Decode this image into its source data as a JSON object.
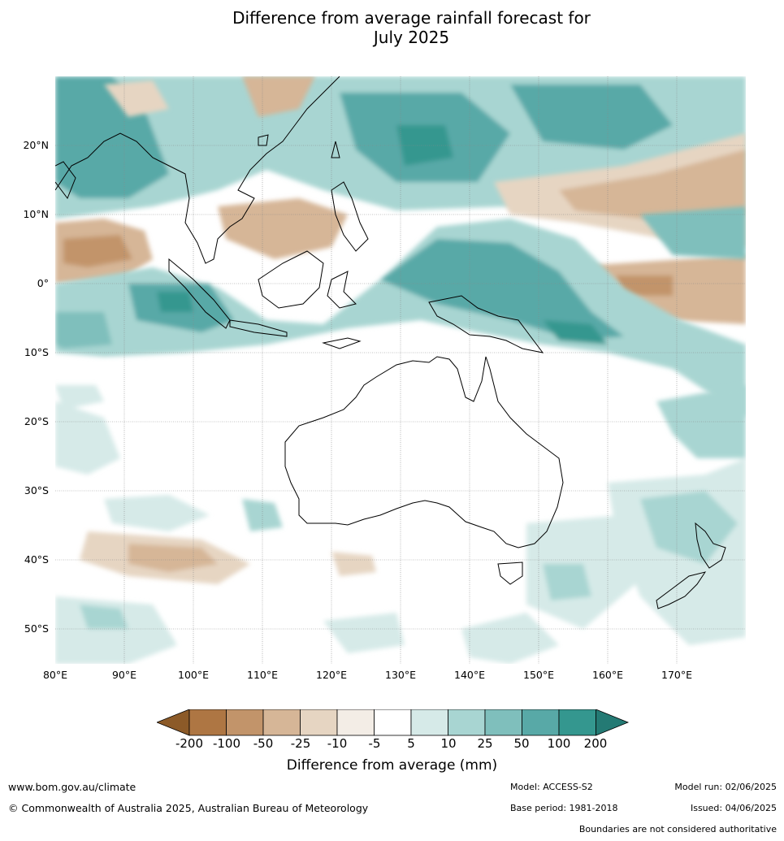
{
  "title_line1": "Difference from average rainfall forecast for",
  "title_line2": "July 2025",
  "lat_labels": [
    "20°N",
    "10°N",
    "0°",
    "10°S",
    "20°S",
    "30°S",
    "40°S",
    "50°S"
  ],
  "lon_labels": [
    "80°E",
    "90°E",
    "100°E",
    "110°E",
    "120°E",
    "130°E",
    "140°E",
    "150°E",
    "160°E",
    "170°E"
  ],
  "colorbar": {
    "ticks": [
      "-200",
      "-100",
      "-50",
      "-25",
      "-10",
      "-5",
      "5",
      "10",
      "25",
      "50",
      "100",
      "200"
    ],
    "colors": [
      "#8c5a28",
      "#ae7643",
      "#c2946a",
      "#d6b697",
      "#e6d5c2",
      "#f3ede6",
      "#ffffff",
      "#d6eae8",
      "#a8d5d2",
      "#7fbfbc",
      "#58a9a7",
      "#34978f",
      "#247a74"
    ],
    "label": "Difference from average (mm)"
  },
  "footer": {
    "url": "www.bom.gov.au/climate",
    "copyright": "© Commonwealth of Australia 2025, Australian Bureau of Meteorology",
    "model": "Model: ACCESS-S2",
    "base_period": "Base period: 1981-2018",
    "model_run": "Model run: 02/06/2025",
    "issued": "Issued: 04/06/2025",
    "disclaimer": "Boundaries are not considered authoritative"
  }
}
